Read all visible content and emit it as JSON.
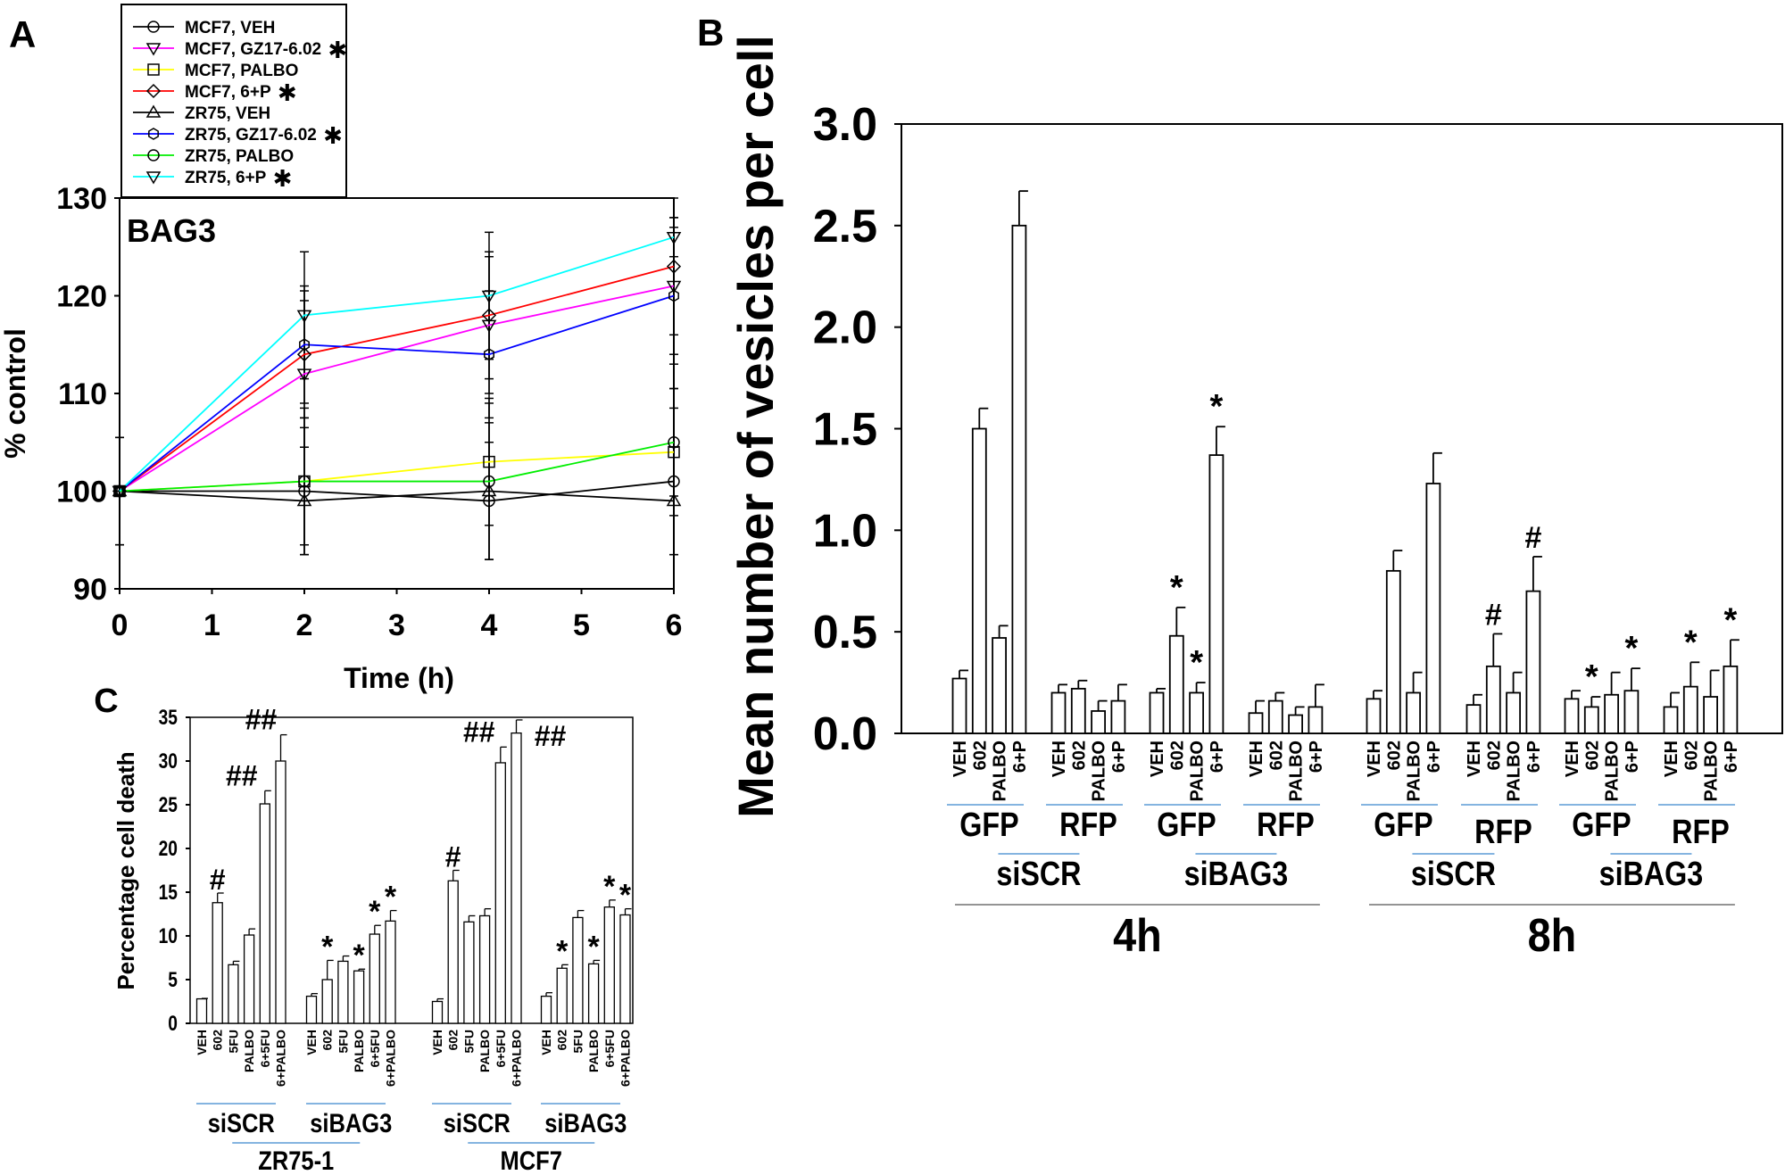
{
  "chart_data": [
    {
      "panel": "A",
      "type": "line",
      "annotation": "BAG3",
      "xlabel": "Time (h)",
      "ylabel": "% control",
      "xlim": [
        0,
        6
      ],
      "ylim": [
        90,
        130
      ],
      "xticks": [
        "0",
        "1",
        "2",
        "3",
        "4",
        "5",
        "6"
      ],
      "yticks": [
        "90",
        "100",
        "110",
        "120",
        "130"
      ],
      "x": [
        0,
        2,
        4,
        6
      ],
      "legend_placement": "top-left, outside above plot",
      "series": [
        {
          "name": "MCF7, VEH",
          "star": false,
          "color": "#000000",
          "marker": "circle",
          "values": [
            100,
            100,
            99,
            101
          ],
          "error": [
            5.5,
            6.5,
            6,
            7.5
          ]
        },
        {
          "name": "MCF7, GZ17-6.02",
          "star": true,
          "color": "#ff00ff",
          "marker": "triangle-down",
          "values": [
            100,
            112,
            117,
            121
          ],
          "error": [
            5.5,
            7.5,
            7,
            7
          ]
        },
        {
          "name": "MCF7, PALBO",
          "star": false,
          "color": "#ffff00",
          "marker": "square",
          "values": [
            100,
            101,
            103,
            104
          ],
          "error": [
            5.5,
            6.5,
            6.5,
            6.5
          ]
        },
        {
          "name": "MCF7, 6+P",
          "star": true,
          "color": "#ff0000",
          "marker": "diamond",
          "values": [
            100,
            114,
            118,
            123
          ],
          "error": [
            5.5,
            6.5,
            6.5,
            7
          ]
        },
        {
          "name": "ZR75, VEH",
          "star": false,
          "color": "#000000",
          "marker": "triangle-up",
          "values": [
            100,
            99,
            100,
            99
          ],
          "error": [
            5.5,
            5.5,
            7,
            5.5
          ]
        },
        {
          "name": "ZR75, GZ17-6.02",
          "star": true,
          "color": "#0000ff",
          "marker": "hexagon",
          "values": [
            100,
            115,
            114,
            120
          ],
          "error": [
            5.5,
            6,
            6.5,
            7
          ]
        },
        {
          "name": "ZR75, PALBO",
          "star": false,
          "color": "#00ee00",
          "marker": "circle",
          "values": [
            100,
            101,
            101,
            105
          ],
          "error": [
            5.5,
            7.5,
            8,
            5.5
          ]
        },
        {
          "name": "ZR75, 6+P",
          "star": true,
          "color": "#00ffff",
          "marker": "triangle-down",
          "values": [
            100,
            118,
            120,
            126
          ],
          "error": [
            5.5,
            6.5,
            6.5,
            2
          ]
        }
      ]
    },
    {
      "panel": "B",
      "type": "bar",
      "ylabel": "Mean number of vesicles per cell",
      "ylim": [
        0,
        3.0
      ],
      "yticks": [
        "0.0",
        "0.5",
        "1.0",
        "1.5",
        "2.0",
        "2.5",
        "3.0"
      ],
      "treatments": [
        "VEH",
        "602",
        "PALBO",
        "6+P"
      ],
      "groups": [
        {
          "time": "4h",
          "si": "siSCR",
          "fp": "GFP",
          "values": [
            0.27,
            1.5,
            0.47,
            2.5
          ],
          "error": [
            0.04,
            0.1,
            0.06,
            0.17
          ],
          "annotations": [
            "",
            "",
            "",
            ""
          ]
        },
        {
          "time": "4h",
          "si": "siSCR",
          "fp": "RFP",
          "values": [
            0.2,
            0.22,
            0.11,
            0.16
          ],
          "error": [
            0.04,
            0.04,
            0.05,
            0.08
          ],
          "annotations": [
            "",
            "",
            "",
            ""
          ]
        },
        {
          "time": "4h",
          "si": "siBAG3",
          "fp": "GFP",
          "values": [
            0.2,
            0.48,
            0.2,
            1.37
          ],
          "error": [
            0.02,
            0.14,
            0.05,
            0.14
          ],
          "annotations": [
            "",
            "*",
            "*",
            "*"
          ]
        },
        {
          "time": "4h",
          "si": "siBAG3",
          "fp": "RFP",
          "values": [
            0.1,
            0.16,
            0.09,
            0.13
          ],
          "error": [
            0.06,
            0.04,
            0.04,
            0.11
          ],
          "annotations": [
            "",
            "",
            "",
            ""
          ]
        },
        {
          "time": "8h",
          "si": "siSCR",
          "fp": "GFP",
          "values": [
            0.17,
            0.8,
            0.2,
            1.23
          ],
          "error": [
            0.04,
            0.1,
            0.1,
            0.15
          ],
          "annotations": [
            "",
            "",
            "",
            ""
          ]
        },
        {
          "time": "8h",
          "si": "siSCR",
          "fp": "RFP",
          "values": [
            0.14,
            0.33,
            0.2,
            0.7
          ],
          "error": [
            0.05,
            0.16,
            0.1,
            0.17
          ],
          "annotations": [
            "",
            "#",
            "",
            "#"
          ]
        },
        {
          "time": "8h",
          "si": "siBAG3",
          "fp": "GFP",
          "values": [
            0.17,
            0.13,
            0.19,
            0.21
          ],
          "error": [
            0.04,
            0.05,
            0.11,
            0.11
          ],
          "annotations": [
            "",
            "*",
            "",
            "*"
          ]
        },
        {
          "time": "8h",
          "si": "siBAG3",
          "fp": "RFP",
          "values": [
            0.13,
            0.23,
            0.18,
            0.33
          ],
          "error": [
            0.07,
            0.12,
            0.13,
            0.13
          ],
          "annotations": [
            "",
            "*",
            "",
            "*"
          ]
        }
      ]
    },
    {
      "panel": "C",
      "type": "bar",
      "ylabel": "Percentage cell death",
      "ylim": [
        0,
        35
      ],
      "yticks": [
        "0",
        "5",
        "10",
        "15",
        "20",
        "25",
        "30",
        "35"
      ],
      "treatments": [
        "VEH",
        "602",
        "5FU",
        "PALBO",
        "6+5FU",
        "6+PALBO"
      ],
      "groups": [
        {
          "cell": "ZR75-1",
          "si": "siSCR",
          "values": [
            2.8,
            13.8,
            6.7,
            10.1,
            25.1,
            30.0
          ],
          "error": [
            0.05,
            1.1,
            0.4,
            0.7,
            1.5,
            3.0
          ],
          "annotations": [
            "",
            "#",
            "",
            "",
            "##",
            "##"
          ]
        },
        {
          "cell": "ZR75-1",
          "si": "siBAG3",
          "values": [
            3.1,
            5.0,
            7.1,
            6.0,
            10.2,
            11.7
          ],
          "error": [
            0.3,
            2.2,
            0.6,
            0.2,
            1.0,
            1.2
          ],
          "annotations": [
            "",
            "*",
            "",
            "*",
            "*",
            "*"
          ]
        },
        {
          "cell": "MCF7",
          "si": "siSCR",
          "values": [
            2.5,
            16.3,
            11.6,
            12.3,
            29.8,
            33.2
          ],
          "error": [
            0.3,
            1.2,
            0.7,
            0.8,
            1.8,
            1.5
          ],
          "annotations": [
            "",
            "#",
            "",
            "",
            "##",
            "##"
          ]
        },
        {
          "cell": "MCF7",
          "si": "siBAG3",
          "values": [
            3.1,
            6.3,
            12.1,
            6.8,
            13.3,
            12.4
          ],
          "error": [
            0.4,
            0.4,
            0.8,
            0.4,
            0.8,
            0.7
          ],
          "annotations": [
            "",
            "*",
            "",
            "*",
            "*",
            "*"
          ]
        }
      ]
    }
  ],
  "colors": {
    "group_underline": "#5b9bd5",
    "bar_fill": "#ffffff",
    "axis": "#000000"
  }
}
